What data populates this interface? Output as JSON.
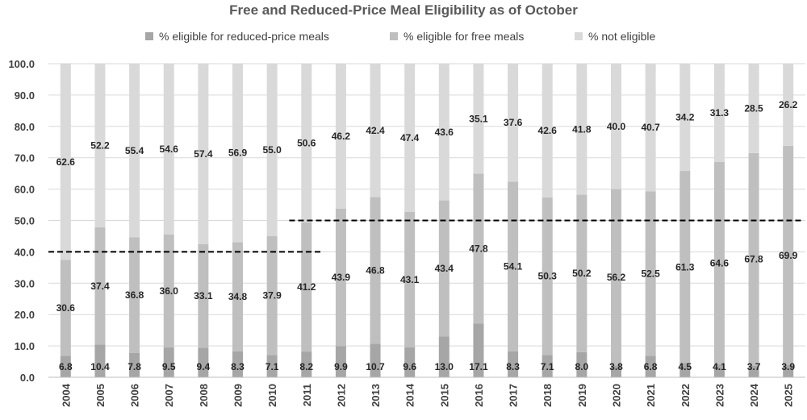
{
  "chart_data": {
    "type": "bar",
    "stacked": true,
    "title": "Free and Reduced-Price Meal Eligibility as of October",
    "xlabel": "",
    "ylabel": "",
    "ylim": [
      0,
      100
    ],
    "yticks": [
      "0.0",
      "10.0",
      "20.0",
      "30.0",
      "40.0",
      "50.0",
      "60.0",
      "70.0",
      "80.0",
      "90.0",
      "100.0"
    ],
    "grid": true,
    "legend_position": "top",
    "categories": [
      "2004",
      "2005",
      "2006",
      "2007",
      "2008",
      "2009",
      "2010",
      "2011",
      "2012",
      "2013",
      "2014",
      "2015",
      "2016",
      "2017",
      "2018",
      "2019",
      "2020",
      "2021",
      "2022",
      "2023",
      "2024",
      "2025"
    ],
    "series": [
      {
        "name": "% eligible for reduced-price meals",
        "color": "#a6a6a6",
        "values": [
          6.8,
          10.4,
          7.8,
          9.5,
          9.4,
          8.3,
          7.1,
          8.2,
          9.9,
          10.7,
          9.6,
          13.0,
          17.1,
          8.3,
          7.1,
          8.0,
          3.8,
          6.8,
          4.5,
          4.1,
          3.7,
          3.9
        ],
        "labels": [
          "6.8",
          "10.4",
          "7.8",
          "9.5",
          "9.4",
          "8.3",
          "7.1",
          "8.2",
          "9.9",
          "10.7",
          "9.6",
          "13.0",
          "17.1",
          "8.3",
          "7.1",
          "8.0",
          "3.8",
          "6.8",
          "4.5",
          "4.1",
          "3.7",
          "3.9"
        ]
      },
      {
        "name": "% eligible for free meals",
        "color": "#bfbfbf",
        "values": [
          30.6,
          37.4,
          36.8,
          36.0,
          33.1,
          34.8,
          37.9,
          41.2,
          43.9,
          46.8,
          43.1,
          43.4,
          47.8,
          54.1,
          50.3,
          50.2,
          56.2,
          52.5,
          61.3,
          64.6,
          67.8,
          69.9
        ],
        "labels": [
          "30.6",
          "37.4",
          "36.8",
          "36.0",
          "33.1",
          "34.8",
          "37.9",
          "41.2",
          "43.9",
          "46.8",
          "43.1",
          "43.4",
          "47.8",
          "54.1",
          "50.3",
          "50.2",
          "56.2",
          "52.5",
          "61.3",
          "64.6",
          "67.8",
          "69.9"
        ]
      },
      {
        "name": "% not eligible",
        "color": "#d9d9d9",
        "values": [
          62.6,
          52.2,
          55.4,
          54.6,
          57.4,
          56.9,
          55.0,
          50.6,
          46.2,
          42.4,
          47.4,
          43.6,
          35.1,
          37.6,
          42.6,
          41.8,
          40.0,
          40.7,
          34.2,
          31.3,
          28.5,
          26.2
        ],
        "labels": [
          "62.6",
          "52.2",
          "55.4",
          "54.6",
          "57.4",
          "56.9",
          "55.0",
          "50.6",
          "46.2",
          "42.4",
          "47.4",
          "43.6",
          "35.1",
          "37.6",
          "42.6",
          "41.8",
          "40.0",
          "40.7",
          "34.2",
          "31.3",
          "28.5",
          "26.2"
        ]
      }
    ],
    "reference_lines": [
      {
        "value": 40,
        "from": "2004",
        "to": "2011",
        "style": "dashed"
      },
      {
        "value": 50,
        "from": "2011",
        "to": "2025",
        "style": "dashed"
      }
    ]
  }
}
